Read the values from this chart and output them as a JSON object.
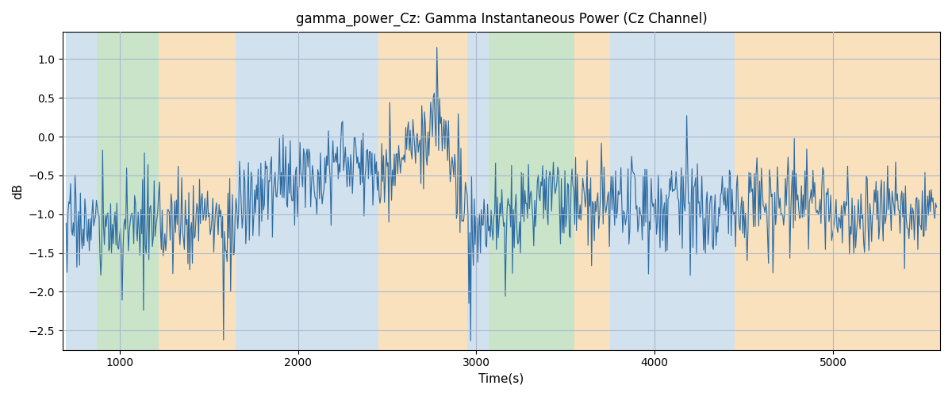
{
  "title": "gamma_power_Cz: Gamma Instantaneous Power (Cz Channel)",
  "xlabel": "Time(s)",
  "ylabel": "dB",
  "xlim": [
    680,
    5600
  ],
  "ylim": [
    -2.75,
    1.35
  ],
  "line_color": "#2e6da4",
  "line_width": 0.85,
  "background_color": "#ffffff",
  "grid_color": "#aab8cc",
  "colored_bands": [
    {
      "xmin": 700,
      "xmax": 870,
      "color": "#aec9e0",
      "alpha": 0.55
    },
    {
      "xmin": 870,
      "xmax": 1220,
      "color": "#9ecf9e",
      "alpha": 0.55
    },
    {
      "xmin": 1220,
      "xmax": 1650,
      "color": "#f5c98a",
      "alpha": 0.55
    },
    {
      "xmin": 1650,
      "xmax": 1850,
      "color": "#aec9e0",
      "alpha": 0.55
    },
    {
      "xmin": 1850,
      "xmax": 2450,
      "color": "#aec9e0",
      "alpha": 0.55
    },
    {
      "xmin": 2450,
      "xmax": 2950,
      "color": "#f5c98a",
      "alpha": 0.55
    },
    {
      "xmin": 2950,
      "xmax": 3070,
      "color": "#aec9e0",
      "alpha": 0.55
    },
    {
      "xmin": 3070,
      "xmax": 3550,
      "color": "#9ecf9e",
      "alpha": 0.55
    },
    {
      "xmin": 3550,
      "xmax": 3750,
      "color": "#f5c98a",
      "alpha": 0.55
    },
    {
      "xmin": 3750,
      "xmax": 4450,
      "color": "#aec9e0",
      "alpha": 0.55
    },
    {
      "xmin": 4450,
      "xmax": 5600,
      "color": "#f5c98a",
      "alpha": 0.55
    }
  ],
  "seed": 17,
  "n_points": 980,
  "t_start": 700,
  "t_end": 5580,
  "xticks": [
    1000,
    2000,
    3000,
    4000,
    5000
  ]
}
